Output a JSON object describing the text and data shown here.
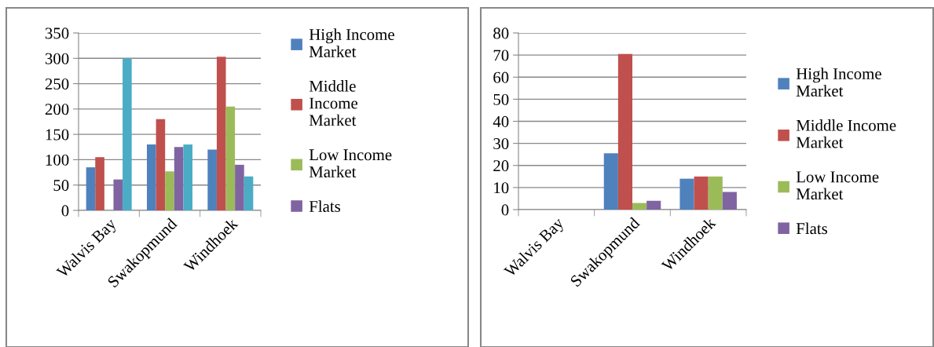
{
  "chart_data": [
    {
      "type": "bar",
      "categories": [
        "Walvis Bay",
        "Swakopmund",
        "Windhoek"
      ],
      "ylim": [
        0,
        350
      ],
      "yticks": [
        0,
        50,
        100,
        150,
        200,
        250,
        300,
        350
      ],
      "grid": "y",
      "legend": "right",
      "series": [
        {
          "name": "High Income Market",
          "color": "#4f81bd",
          "values": [
            85,
            130,
            120
          ]
        },
        {
          "name": "Middle Income Market",
          "color": "#c0504d",
          "values": [
            105,
            180,
            303
          ]
        },
        {
          "name": "Low Income Market",
          "color": "#9bbb59",
          "values": [
            null,
            77,
            205
          ]
        },
        {
          "name": "Flats",
          "color": "#8064a2",
          "values": [
            61,
            125,
            90
          ]
        },
        {
          "color": "#4bacc6",
          "values": [
            300,
            130,
            67
          ]
        }
      ]
    },
    {
      "type": "bar",
      "categories": [
        "Walvis Bay",
        "Swakopmund",
        "Windhoek"
      ],
      "ylim": [
        0,
        80
      ],
      "yticks": [
        0,
        10,
        20,
        30,
        40,
        50,
        60,
        70,
        80
      ],
      "grid": "y",
      "legend": "right",
      "series": [
        {
          "name": "High Income Market",
          "color": "#4f81bd",
          "values": [
            null,
            25.5,
            14
          ]
        },
        {
          "name": "Middle Income Market",
          "color": "#c0504d",
          "values": [
            null,
            70.5,
            15
          ]
        },
        {
          "name": "Low Income Market",
          "color": "#9bbb59",
          "values": [
            null,
            3,
            15
          ]
        },
        {
          "name": "Flats",
          "color": "#8064a2",
          "values": [
            null,
            4,
            8
          ]
        }
      ]
    }
  ]
}
